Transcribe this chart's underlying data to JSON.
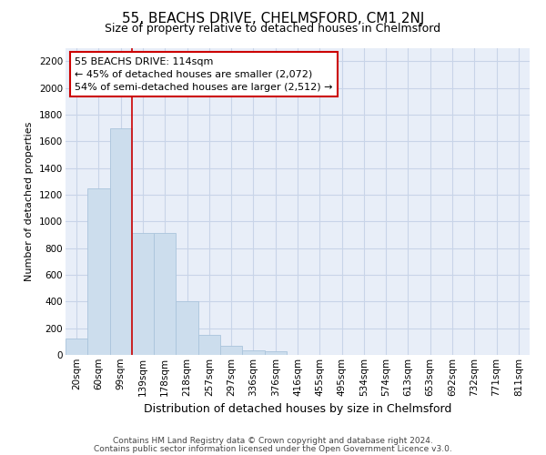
{
  "title": "55, BEACHS DRIVE, CHELMSFORD, CM1 2NJ",
  "subtitle": "Size of property relative to detached houses in Chelmsford",
  "xlabel": "Distribution of detached houses by size in Chelmsford",
  "ylabel": "Number of detached properties",
  "footnote1": "Contains HM Land Registry data © Crown copyright and database right 2024.",
  "footnote2": "Contains public sector information licensed under the Open Government Licence v3.0.",
  "bin_labels": [
    "20sqm",
    "60sqm",
    "99sqm",
    "139sqm",
    "178sqm",
    "218sqm",
    "257sqm",
    "297sqm",
    "336sqm",
    "376sqm",
    "416sqm",
    "455sqm",
    "495sqm",
    "534sqm",
    "574sqm",
    "613sqm",
    "653sqm",
    "692sqm",
    "732sqm",
    "771sqm",
    "811sqm"
  ],
  "bar_heights": [
    120,
    1250,
    1700,
    910,
    910,
    400,
    150,
    65,
    35,
    25,
    0,
    0,
    0,
    0,
    0,
    0,
    0,
    0,
    0,
    0,
    0
  ],
  "bar_color": "#ccdded",
  "bar_edgecolor": "#aac4dc",
  "vline_pos": 2.5,
  "vline_color": "#cc0000",
  "annotation_line1": "55 BEACHS DRIVE: 114sqm",
  "annotation_line2": "← 45% of detached houses are smaller (2,072)",
  "annotation_line3": "54% of semi-detached houses are larger (2,512) →",
  "annotation_box_facecolor": "#ffffff",
  "annotation_box_edgecolor": "#cc0000",
  "ylim": [
    0,
    2300
  ],
  "yticks": [
    0,
    200,
    400,
    600,
    800,
    1000,
    1200,
    1400,
    1600,
    1800,
    2000,
    2200
  ],
  "grid_color": "#c8d4e8",
  "bg_color": "#e8eef8",
  "title_fontsize": 11,
  "subtitle_fontsize": 9,
  "ylabel_fontsize": 8,
  "xlabel_fontsize": 9,
  "footnote_fontsize": 6.5,
  "tick_fontsize": 7.5,
  "annotation_fontsize": 8
}
